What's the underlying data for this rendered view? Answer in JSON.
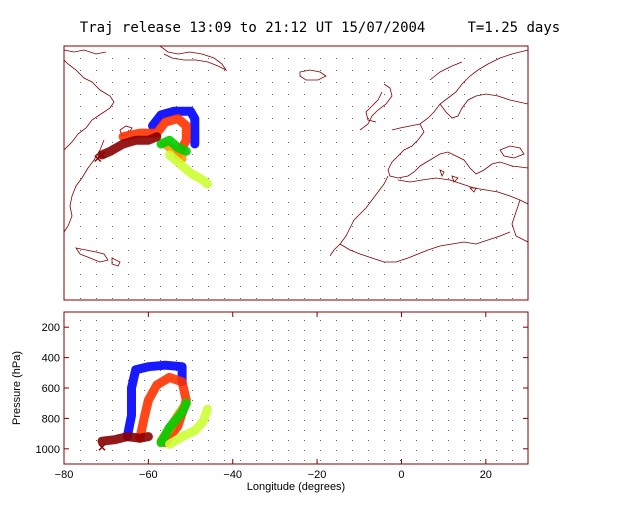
{
  "title": "Traj release 13:09 to 21:12 UT 15/07/2004     T=1.25 days",
  "colors": {
    "frame": "#800000",
    "grid": "#606060",
    "coast": "#800000"
  },
  "chart_data": [
    {
      "type": "map",
      "title": "Traj release 13:09 to 21:12 UT 15/07/2004     T=1.25 days",
      "xlim": [
        -80,
        30
      ],
      "ylim": [
        5,
        75
      ],
      "grid": true,
      "series": [
        {
          "color": "#0000ff",
          "points": [
            [
              -59,
              53
            ],
            [
              -57,
              56
            ],
            [
              -54,
              57
            ],
            [
              -50,
              57
            ],
            [
              -49,
              55
            ],
            [
              -49,
              51
            ],
            [
              -49,
              48
            ]
          ]
        },
        {
          "color": "#ff3300",
          "points": [
            [
              -66,
              50
            ],
            [
              -62,
              51
            ],
            [
              -58,
              51
            ],
            [
              -56,
              54
            ],
            [
              -53,
              55
            ],
            [
              -51,
              53
            ],
            [
              -51,
              49
            ],
            [
              -53,
              45
            ]
          ]
        },
        {
          "color": "#ff9900",
          "points": [
            [
              -56,
              48
            ],
            [
              -55,
              47
            ],
            [
              -53,
              46
            ],
            [
              -52,
              44
            ]
          ]
        },
        {
          "color": "#00cc00",
          "points": [
            [
              -57,
              48
            ],
            [
              -55,
              49
            ],
            [
              -53,
              47
            ],
            [
              -51,
              46
            ]
          ]
        },
        {
          "color": "#ccff33",
          "points": [
            [
              -55,
              45
            ],
            [
              -53,
              43
            ],
            [
              -50,
              40
            ],
            [
              -47,
              38
            ],
            [
              -46,
              37
            ]
          ]
        },
        {
          "color": "#8b0000",
          "points": [
            [
              -71,
              45
            ],
            [
              -69,
              46
            ],
            [
              -66,
              48
            ],
            [
              -63,
              49
            ],
            [
              -60,
              49
            ],
            [
              -58,
              50
            ]
          ]
        }
      ],
      "release_points": [
        [
          -71,
          45
        ],
        [
          -72,
          44
        ]
      ]
    },
    {
      "type": "scatter",
      "xlabel": "Longitude  (degrees)",
      "ylabel": "Pressure  (hPa)",
      "xlim": [
        -80,
        30
      ],
      "ylim": [
        1100,
        100
      ],
      "xticks": [
        -80,
        -60,
        -40,
        -20,
        0,
        20
      ],
      "yticks": [
        200,
        400,
        600,
        800,
        1000
      ],
      "grid": true,
      "series": [
        {
          "color": "#0000ff",
          "points": [
            [
              -65,
              920
            ],
            [
              -64,
              780
            ],
            [
              -64,
              600
            ],
            [
              -63,
              480
            ],
            [
              -60,
              460
            ],
            [
              -56,
              450
            ],
            [
              -52,
              460
            ],
            [
              -52,
              560
            ]
          ]
        },
        {
          "color": "#ff3300",
          "points": [
            [
              -62,
              930
            ],
            [
              -61,
              800
            ],
            [
              -60,
              680
            ],
            [
              -58,
              580
            ],
            [
              -55,
              530
            ],
            [
              -52,
              560
            ],
            [
              -51,
              680
            ],
            [
              -53,
              850
            ],
            [
              -56,
              960
            ]
          ]
        },
        {
          "color": "#ff9900",
          "points": [
            [
              -57,
              950
            ],
            [
              -55,
              870
            ],
            [
              -53,
              780
            ],
            [
              -51,
              700
            ]
          ]
        },
        {
          "color": "#00cc00",
          "points": [
            [
              -57,
              960
            ],
            [
              -55,
              860
            ],
            [
              -52,
              760
            ],
            [
              -51,
              700
            ]
          ]
        },
        {
          "color": "#ccff33",
          "points": [
            [
              -55,
              970
            ],
            [
              -52,
              920
            ],
            [
              -49,
              880
            ],
            [
              -47,
              820
            ],
            [
              -46,
              740
            ]
          ]
        },
        {
          "color": "#8b0000",
          "points": [
            [
              -71,
              950
            ],
            [
              -68,
              940
            ],
            [
              -65,
              920
            ],
            [
              -62,
              930
            ],
            [
              -60,
              920
            ]
          ]
        }
      ],
      "release_points": [
        [
          -71,
          990
        ]
      ]
    }
  ]
}
